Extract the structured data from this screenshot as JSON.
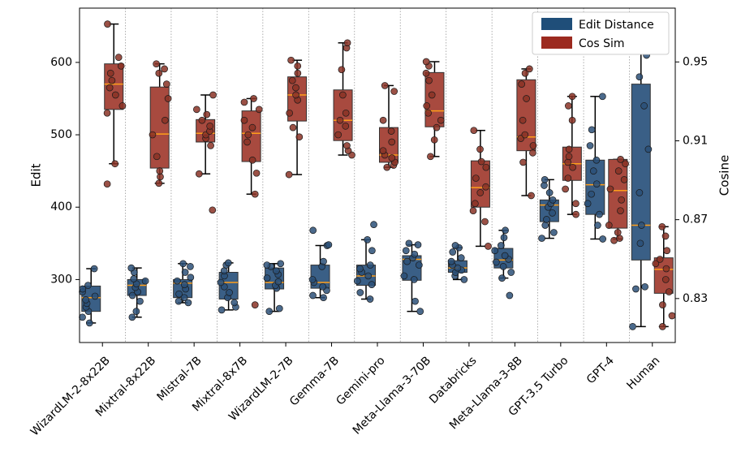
{
  "chart_data": {
    "type": "box",
    "categories": [
      "WizardLM-2-8x22B",
      "Mixtral-8x22B",
      "Mistral-7B",
      "Mixtral-8x7B",
      "WizardLM-2-7B",
      "Gemma-7B",
      "Gemini-pro",
      "Meta-Llama-3-70B",
      "Databricks",
      "Meta-Llama-3-8B",
      "GPT-3.5 Turbo",
      "GPT-4",
      "Human"
    ],
    "ylabel_left": "Edit",
    "ylabel_right": "Cosine",
    "ylim_left": [
      213,
      675
    ],
    "ylim_right": [
      0.8077,
      0.9773
    ],
    "yticks_left": [
      "300",
      "400",
      "500",
      "600"
    ],
    "yticks_right": [
      "0.83",
      "0.87",
      "0.91",
      "0.95"
    ],
    "legend": [
      {
        "label": "Edit Distance",
        "color": "#1f4e79"
      },
      {
        "label": "Cos Sim",
        "color": "#9c2a1f"
      }
    ],
    "series": [
      {
        "name": "Edit Distance",
        "axis": "left",
        "box_color": "#3a5f86",
        "point_color": "#2b5078",
        "boxes": [
          {
            "whislo": 240,
            "q1": 256,
            "med": 275,
            "q3": 291,
            "whishi": 315,
            "points": [
              240,
              248,
              256,
              262,
              267,
              272,
              277,
              283,
              287,
              292,
              315
            ]
          },
          {
            "whislo": 248,
            "q1": 278,
            "med": 292,
            "q3": 300,
            "whishi": 316,
            "points": [
              248,
              256,
              270,
              278,
              283,
              289,
              294,
              298,
              301,
              310,
              316
            ]
          },
          {
            "whislo": 268,
            "q1": 275,
            "med": 295,
            "q3": 300,
            "whishi": 322,
            "points": [
              268,
              270,
              275,
              280,
              287,
              293,
              298,
              303,
              310,
              318,
              322
            ]
          },
          {
            "whislo": 258,
            "q1": 273,
            "med": 296,
            "q3": 310,
            "whishi": 323,
            "points": [
              258,
              262,
              268,
              275,
              282,
              290,
              296,
              305,
              312,
              320,
              323
            ]
          },
          {
            "whislo": 256,
            "q1": 287,
            "med": 296,
            "q3": 316,
            "whishi": 322,
            "points": [
              256,
              260,
              288,
              292,
              297,
              302,
              307,
              312,
              318,
              320,
              322
            ]
          },
          {
            "whislo": 275,
            "q1": 288,
            "med": 296,
            "q3": 320,
            "whishi": 347,
            "points": [
              275,
              278,
              285,
              290,
              296,
              300,
              318,
              325,
              347,
              348,
              368
            ]
          },
          {
            "whislo": 273,
            "q1": 292,
            "med": 305,
            "q3": 320,
            "whishi": 355,
            "points": [
              273,
              282,
              293,
              298,
              305,
              310,
              315,
              320,
              340,
              355,
              376
            ]
          },
          {
            "whislo": 256,
            "q1": 299,
            "med": 328,
            "q3": 333,
            "whishi": 348,
            "points": [
              256,
              270,
              300,
              305,
              320,
              325,
              330,
              335,
              340,
              348,
              350
            ]
          },
          {
            "whislo": 300,
            "q1": 310,
            "med": 316,
            "q3": 326,
            "whishi": 344,
            "points": [
              300,
              305,
              310,
              313,
              316,
              320,
              325,
              330,
              338,
              344,
              347
            ]
          },
          {
            "whislo": 302,
            "q1": 316,
            "med": 327,
            "q3": 343,
            "whishi": 368,
            "points": [
              278,
              302,
              310,
              318,
              324,
              328,
              333,
              340,
              347,
              358,
              368
            ]
          },
          {
            "whislo": 357,
            "q1": 380,
            "med": 403,
            "q3": 410,
            "whishi": 438,
            "points": [
              357,
              365,
              375,
              383,
              392,
              400,
              405,
              410,
              420,
              430,
              438
            ]
          },
          {
            "whislo": 356,
            "q1": 390,
            "med": 431,
            "q3": 465,
            "whishi": 553,
            "points": [
              356,
              375,
              390,
              405,
              418,
              432,
              450,
              465,
              485,
              507,
              553
            ]
          },
          {
            "whislo": 235,
            "q1": 327,
            "med": 375,
            "q3": 570,
            "whishi": 635,
            "points": [
              235,
              287,
              290,
              350,
              375,
              420,
              480,
              540,
              580,
              610,
              635
            ]
          }
        ]
      },
      {
        "name": "Cos Sim",
        "axis": "left",
        "box_color": "#a84a3f",
        "point_color": "#8a3226",
        "boxes": [
          {
            "whislo": 460,
            "q1": 535,
            "med": 570,
            "q3": 598,
            "whishi": 653,
            "points": [
              432,
              460,
              530,
              540,
              555,
              565,
              575,
              585,
              595,
              607,
              653
            ]
          },
          {
            "whislo": 433,
            "q1": 454,
            "med": 501,
            "q3": 566,
            "whishi": 598,
            "points": [
              433,
              442,
              450,
              470,
              500,
              520,
              550,
              570,
              585,
              591,
              598
            ]
          },
          {
            "whislo": 446,
            "q1": 490,
            "med": 502,
            "q3": 521,
            "whishi": 555,
            "points": [
              396,
              446,
              485,
              495,
              500,
              505,
              512,
              520,
              528,
              535,
              555
            ]
          },
          {
            "whislo": 418,
            "q1": 463,
            "med": 502,
            "q3": 533,
            "whishi": 550,
            "points": [
              265,
              418,
              447,
              465,
              490,
              500,
              510,
              520,
              535,
              545,
              550
            ]
          },
          {
            "whislo": 445,
            "q1": 519,
            "med": 555,
            "q3": 580,
            "whishi": 603,
            "points": [
              445,
              497,
              510,
              530,
              548,
              555,
              565,
              575,
              585,
              595,
              603
            ]
          },
          {
            "whislo": 472,
            "q1": 492,
            "med": 520,
            "q3": 562,
            "whishi": 627,
            "points": [
              472,
              478,
              485,
              500,
              512,
              520,
              530,
              555,
              590,
              620,
              627
            ]
          },
          {
            "whislo": 455,
            "q1": 462,
            "med": 472,
            "q3": 510,
            "whishi": 568,
            "points": [
              455,
              458,
              462,
              468,
              472,
              478,
              490,
              505,
              520,
              560,
              568
            ]
          },
          {
            "whislo": 470,
            "q1": 511,
            "med": 533,
            "q3": 586,
            "whishi": 601,
            "points": [
              470,
              493,
              510,
              520,
              530,
              540,
              555,
              575,
              585,
              595,
              601
            ]
          },
          {
            "whislo": 346,
            "q1": 400,
            "med": 427,
            "q3": 464,
            "whishi": 506,
            "points": [
              346,
              380,
              395,
              405,
              420,
              428,
              440,
              455,
              463,
              480,
              506
            ]
          },
          {
            "whislo": 416,
            "q1": 478,
            "med": 497,
            "q3": 576,
            "whishi": 591,
            "points": [
              416,
              462,
              475,
              485,
              495,
              500,
              520,
              550,
              570,
              585,
              591
            ]
          },
          {
            "whislo": 390,
            "q1": 437,
            "med": 460,
            "q3": 483,
            "whishi": 553,
            "points": [
              390,
              405,
              425,
              440,
              455,
              462,
              470,
              480,
              520,
              540,
              553
            ]
          },
          {
            "whislo": 356,
            "q1": 371,
            "med": 423,
            "q3": 466,
            "whishi": 466,
            "points": [
              354,
              357,
              365,
              375,
              395,
              410,
              425,
              438,
              450,
              460,
              466
            ]
          },
          {
            "whislo": 235,
            "q1": 281,
            "med": 314,
            "q3": 330,
            "whishi": 373,
            "points": [
              235,
              250,
              265,
              283,
              300,
              315,
              322,
              328,
              340,
              360,
              373
            ]
          }
        ]
      }
    ]
  }
}
